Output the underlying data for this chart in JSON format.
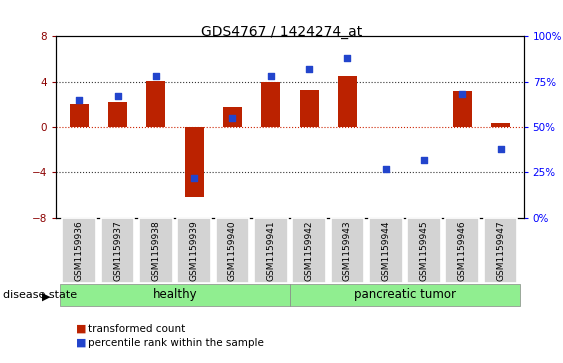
{
  "title": "GDS4767 / 1424274_at",
  "samples": [
    "GSM1159936",
    "GSM1159937",
    "GSM1159938",
    "GSM1159939",
    "GSM1159940",
    "GSM1159941",
    "GSM1159942",
    "GSM1159943",
    "GSM1159944",
    "GSM1159945",
    "GSM1159946",
    "GSM1159947"
  ],
  "transformed_count": [
    2.0,
    2.2,
    4.1,
    -6.2,
    1.8,
    4.0,
    3.3,
    4.5,
    0.0,
    0.0,
    3.2,
    0.4
  ],
  "percentile_rank": [
    65,
    67,
    78,
    22,
    55,
    78,
    82,
    88,
    27,
    32,
    68,
    38
  ],
  "ylim_left": [
    -8,
    8
  ],
  "ylim_right": [
    0,
    100
  ],
  "yticks_left": [
    -8,
    -4,
    0,
    4,
    8
  ],
  "yticks_right": [
    0,
    25,
    50,
    75,
    100
  ],
  "bar_color": "#bb2200",
  "dot_color": "#2244cc",
  "hline_color": "#cc2200",
  "dotted_color": "#333333",
  "healthy_indices": [
    0,
    1,
    2,
    3,
    4,
    5
  ],
  "tumor_indices": [
    6,
    7,
    8,
    9,
    10,
    11
  ],
  "healthy_label": "healthy",
  "tumor_label": "pancreatic tumor",
  "disease_state_label": "disease state",
  "legend_bar_label": "transformed count",
  "legend_dot_label": "percentile rank within the sample",
  "group_color": "#90ee90",
  "tick_label_fontsize": 6.5,
  "bar_width": 0.5
}
